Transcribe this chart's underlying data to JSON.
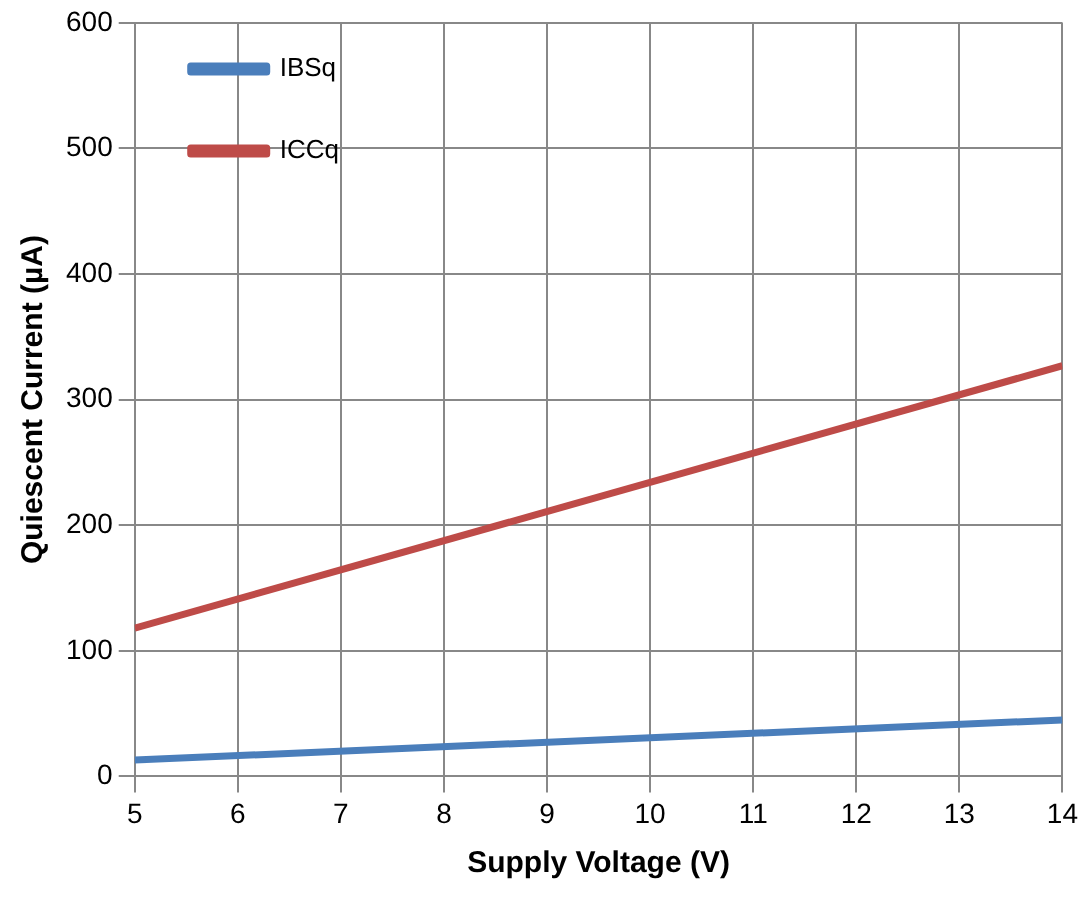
{
  "chart_data": {
    "type": "line",
    "xlabel": "Supply Voltage (V)",
    "ylabel": "Quiescent Current (µA)",
    "x": [
      5,
      14
    ],
    "series": [
      {
        "name": "IBSq",
        "color": "#4a7ebb",
        "values": [
          13,
          45
        ]
      },
      {
        "name": "ICCq",
        "color": "#be4b48",
        "values": [
          118,
          327
        ]
      }
    ],
    "xlim": [
      5,
      14
    ],
    "xticks": [
      5,
      6,
      7,
      8,
      9,
      10,
      11,
      12,
      13,
      14
    ],
    "ylim": [
      0,
      600
    ],
    "yticks": [
      0,
      100,
      200,
      300,
      400,
      500,
      600
    ],
    "grid": true,
    "legend": "top",
    "marker": "none",
    "line_style": "solid"
  }
}
